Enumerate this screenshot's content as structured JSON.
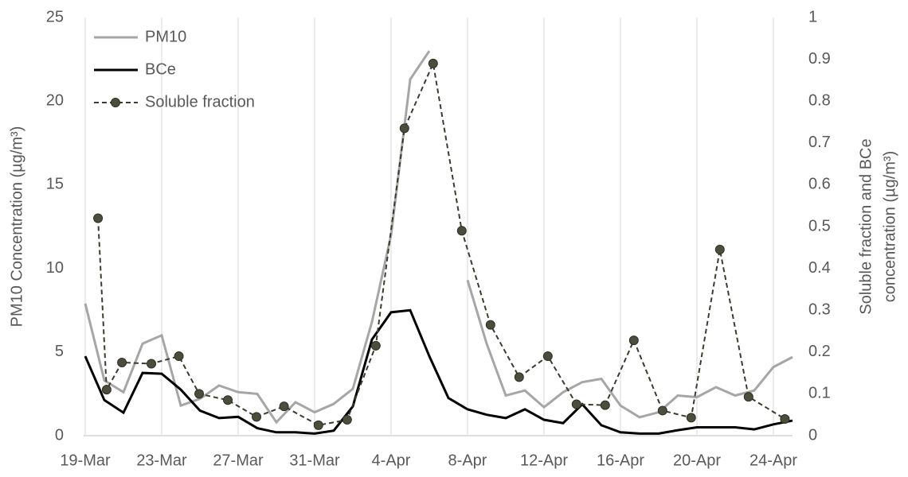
{
  "chart_data": {
    "type": "line",
    "y_label": "PM10 Concentration (µg/m³)",
    "y2_label": [
      "Soluble fraction and BCe",
      "concentration (µg/m³)"
    ],
    "x": [
      0,
      1,
      2,
      3,
      4,
      5,
      6,
      7,
      8,
      9,
      10,
      11,
      12,
      13,
      14,
      15,
      16,
      17,
      18,
      19,
      20,
      21,
      22,
      23,
      24,
      25,
      26,
      27,
      28,
      29,
      30,
      31,
      32,
      33,
      34,
      35,
      36,
      37
    ],
    "xlim": [
      0,
      37
    ],
    "xticks": [
      {
        "value": 0,
        "label": "19-Mar"
      },
      {
        "value": 4,
        "label": "23-Mar"
      },
      {
        "value": 8,
        "label": "27-Mar"
      },
      {
        "value": 12,
        "label": "31-Mar"
      },
      {
        "value": 16,
        "label": "4-Apr"
      },
      {
        "value": 20,
        "label": "8-Apr"
      },
      {
        "value": 24,
        "label": "12-Apr"
      },
      {
        "value": 28,
        "label": "16-Apr"
      },
      {
        "value": 32,
        "label": "20-Apr"
      },
      {
        "value": 36,
        "label": "24-Apr"
      }
    ],
    "ylim": [
      0,
      25
    ],
    "yticks": [
      0,
      5,
      10,
      15,
      20,
      25
    ],
    "y2lim": [
      0,
      1
    ],
    "y2ticks": [
      0,
      0.1,
      0.2,
      0.3,
      0.4,
      0.5,
      0.6,
      0.7,
      0.8,
      0.9,
      1
    ],
    "grid": "x",
    "legend": "upper left",
    "series": [
      {
        "name": "PM10",
        "color": "#a6a6a6",
        "style": "solid",
        "values": [
          7.9,
          3.3,
          2.6,
          5.5,
          6.0,
          1.8,
          2.2,
          3.0,
          2.6,
          2.5,
          0.8,
          2.0,
          1.4,
          1.9,
          2.8,
          6.8,
          12.0,
          21.3,
          23.0,
          null,
          9.3,
          5.5,
          2.4,
          2.7,
          1.7,
          2.6,
          3.2,
          3.4,
          1.8,
          1.1,
          1.4,
          2.4,
          2.3,
          2.9,
          2.4,
          2.7,
          4.1,
          4.7
        ]
      },
      {
        "name": "BCe",
        "color": "#000000",
        "style": "solid",
        "axis": "y2",
        "values": [
          0.19,
          0.085,
          0.055,
          0.15,
          0.148,
          0.11,
          0.06,
          0.042,
          0.045,
          0.018,
          0.008,
          0.008,
          0.005,
          0.012,
          0.07,
          0.23,
          0.295,
          0.3,
          0.19,
          0.09,
          0.063,
          0.05,
          0.042,
          0.063,
          0.038,
          0.03,
          0.075,
          0.025,
          0.008,
          0.005,
          0.005,
          0.013,
          0.02,
          0.02,
          0.02,
          0.015,
          0.027,
          0.036
        ]
      },
      {
        "name": "Soluble fraction",
        "color": "#3b3b30",
        "style": "dashed",
        "marker": true,
        "axis": "y2",
        "x": [
          0.67,
          1.12,
          1.92,
          3.46,
          4.9,
          5.96,
          7.46,
          8.96,
          10.4,
          12.2,
          13.7,
          15.2,
          16.7,
          18.2,
          19.7,
          21.2,
          22.7,
          24.2,
          25.7,
          27.2,
          28.7,
          30.2,
          31.7,
          33.2,
          34.7,
          36.6
        ],
        "values": [
          0.52,
          0.11,
          0.175,
          0.172,
          0.19,
          0.1,
          0.085,
          0.045,
          0.07,
          0.025,
          0.038,
          0.215,
          0.735,
          0.89,
          0.49,
          0.265,
          0.14,
          0.19,
          0.075,
          0.073,
          0.228,
          0.06,
          0.043,
          0.445,
          0.093,
          0.04
        ]
      }
    ]
  }
}
